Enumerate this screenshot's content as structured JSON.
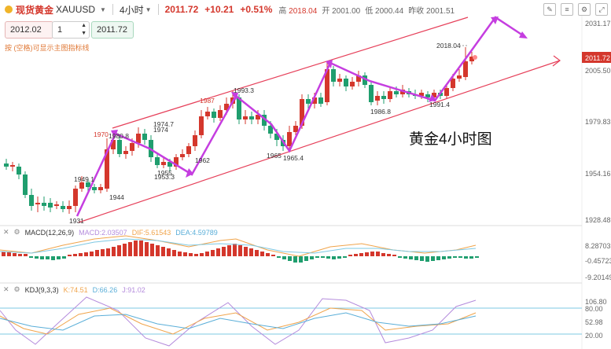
{
  "header": {
    "name": "现货黄金",
    "code": "XAUUSD",
    "dropdown_icon": "chevron-down-icon",
    "timeframe": "4小时",
    "price": "2011.72",
    "change": "+10.21",
    "change_pct": "+0.51%",
    "high_label": "高",
    "high": "2018.04",
    "open_label": "开",
    "open": "2001.00",
    "low_label": "低",
    "low": "2000.44",
    "prev_label": "昨收",
    "prev": "2001.51"
  },
  "order": {
    "left_price": "2012.02",
    "qty": "1",
    "right_price": "2011.72"
  },
  "hint": "按 (空格)可显示主图指标线",
  "chart_title": "黄金4小时图",
  "price_axis": [
    "2031.17",
    "2005.50",
    "1979.83",
    "1954.16",
    "1928.48"
  ],
  "current_price_tag": "2011.72",
  "annotations": [
    "1931",
    "1949.1",
    "1944",
    "1970",
    "1980.8",
    "1974.7",
    "1974",
    "1955",
    "1953.3",
    "1962",
    "1987",
    "1993.3",
    "1965",
    "1965.4",
    "1986.8",
    "1991.4",
    "2018.04"
  ],
  "macd": {
    "label": "MACD(12,26,9)",
    "macd": "MACD:2.03507",
    "dif": "DIF:5.61543",
    "dea": "DEA:4.59789",
    "axis": [
      "8.28703",
      "-0.45723",
      "-9.20149"
    ]
  },
  "kdj": {
    "label": "KDJ(9,3,3)",
    "k": "K:74.51",
    "d": "D:66.26",
    "j": "J:91.02",
    "axis": [
      "106.80",
      "80.00",
      "52.98",
      "20.00"
    ]
  },
  "colors": {
    "up": "#d4372c",
    "down": "#1f9e6e",
    "trend": "#e6405a",
    "arrow": "#c53ee0"
  }
}
